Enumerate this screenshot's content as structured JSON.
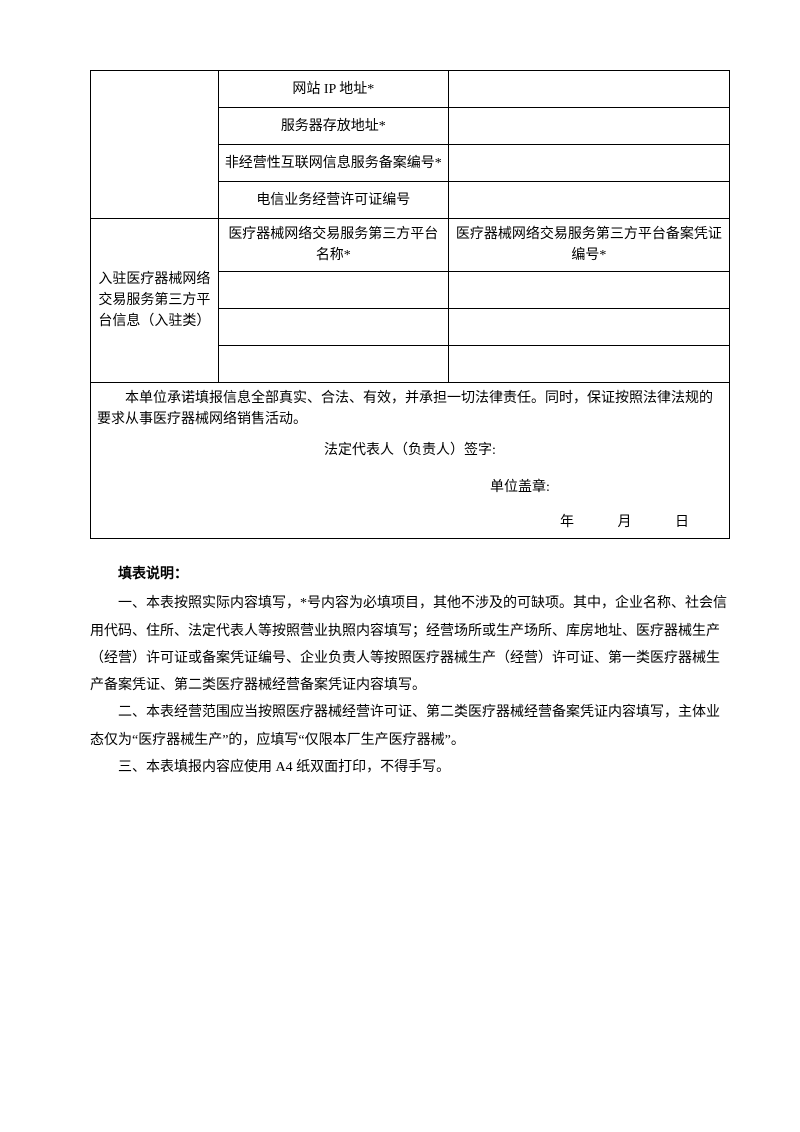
{
  "table": {
    "rows_top": [
      {
        "label": "网站 IP 地址*",
        "value": ""
      },
      {
        "label": "服务器存放地址*",
        "value": ""
      },
      {
        "label": "非经营性互联网信息服务备案编号*",
        "value": ""
      },
      {
        "label": "电信业务经营许可证编号",
        "value": ""
      }
    ],
    "platform_header": "入驻医疗器械网络交易服务第三方平台信息（入驻类）",
    "platform_name_label": "医疗器械网络交易服务第三方平台名称*",
    "platform_cert_label": "医疗器械网络交易服务第三方平台备案凭证编号*",
    "platform_rows": [
      {
        "name": "",
        "cert": ""
      },
      {
        "name": "",
        "cert": ""
      },
      {
        "name": "",
        "cert": ""
      }
    ]
  },
  "commitment": {
    "text": "本单位承诺填报信息全部真实、合法、有效，并承担一切法律责任。同时，保证按照法律法规的要求从事医疗器械网络销售活动。",
    "signature_label": "法定代表人（负责人）签字:",
    "seal_label": "单位盖章:",
    "date_year": "年",
    "date_month": "月",
    "date_day": "日"
  },
  "instructions": {
    "title": "填表说明：",
    "paras": [
      "一、本表按照实际内容填写，*号内容为必填项目，其他不涉及的可缺项。其中，企业名称、社会信用代码、住所、法定代表人等按照营业执照内容填写；经营场所或生产场所、库房地址、医疗器械生产（经营）许可证或备案凭证编号、企业负责人等按照医疗器械生产（经营）许可证、第一类医疗器械生产备案凭证、第二类医疗器械经营备案凭证内容填写。",
      "二、本表经营范围应当按照医疗器械经营许可证、第二类医疗器械经营备案凭证内容填写，主体业态仅为“医疗器械生产”的，应填写“仅限本厂生产医疗器械”。",
      "三、本表填报内容应使用 A4 纸双面打印，不得手写。"
    ]
  }
}
